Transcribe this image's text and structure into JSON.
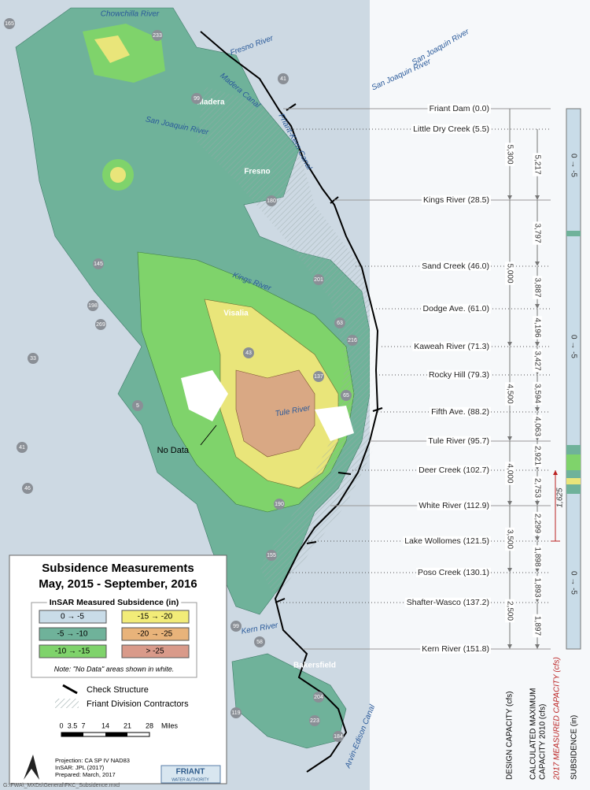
{
  "map": {
    "labels": [
      "Chowchilla River",
      "Fresno River",
      "San Joaquin River",
      "San Joaquin River",
      "Madera Canal",
      "Friant-Kern Canal",
      "San Joaquin River",
      "Kings River",
      "Tule River",
      "Kern River",
      "Arvin-Edison Canal"
    ],
    "cities": [
      "Madera",
      "Fresno",
      "Visalia",
      "Bakersfield"
    ],
    "highways": [
      "165",
      "233",
      "41",
      "99",
      "180",
      "145",
      "201",
      "198",
      "63",
      "269",
      "33",
      "43",
      "216",
      "137",
      "65",
      "5",
      "41",
      "46",
      "190",
      "155",
      "99",
      "58",
      "204",
      "223",
      "184",
      "119"
    ],
    "no_data": "No Data"
  },
  "structures": [
    "Friant Dam (0.0)",
    "Little Dry Creek (5.5)",
    "Kings River (28.5)",
    "Sand Creek (46.0)",
    "Dodge Ave. (61.0)",
    "Kaweah River (71.3)",
    "Rocky Hill (79.3)",
    "Fifth Ave. (88.2)",
    "Tule River (95.7)",
    "Deer Creek (102.7)",
    "White River (112.9)",
    "Lake Wollomes (121.5)",
    "Poso Creek (130.1)",
    "Shafter-Wasco (137.2)",
    "Kern River (151.8)"
  ],
  "design_capacity": [
    "5,300",
    "5,000",
    "4,500",
    "4,000",
    "3,500",
    "2,500"
  ],
  "calculated_capacity": [
    "5,217",
    "3,797",
    "3,887",
    "4,196",
    "3,427",
    "3,594",
    "4,063",
    "2,921",
    "2,753",
    "2,299",
    "1,898",
    "1,893",
    "1,897"
  ],
  "measured_2017": "1,625",
  "subsidence_labels": [
    "0 → -5",
    "0 → -5",
    "0 → -5"
  ],
  "column_headers": {
    "design": "DESIGN CAPACITY (cfs)",
    "calculated": [
      "CALCULATED MAXIMUM",
      "CAPACITY 2010 (cfs)"
    ],
    "measured": "2017 MEASURED CAPACITY (cfs)",
    "subsidence": "SUBSIDENCE (in)"
  },
  "legend": {
    "title": "Subsidence Measurements",
    "subtitle": "May, 2015 - September, 2016",
    "section": "InSAR Measured Subsidence (in)",
    "classes": [
      "0 → -5",
      "-5 → -10",
      "-10 → -15",
      "-15 → -20",
      "-20 → -25",
      "> -25"
    ],
    "note": "Note: \"No Data\" areas shown in white.",
    "check_structure": "Check Structure",
    "contractors": "Friant Division Contractors",
    "scale": [
      "0",
      "3.5",
      "7",
      "14",
      "21",
      "28"
    ],
    "scale_unit": "Miles",
    "credits": [
      "Projection: CA SP IV NAD83",
      "InSAR: JPL (2017)",
      "Prepared: March, 2017"
    ],
    "logo": [
      "FRIANT",
      "WATER AUTHORITY"
    ]
  },
  "footer": "G:\\FWA\\_MXDs\\General\\FKC_Subsidence.mxd"
}
